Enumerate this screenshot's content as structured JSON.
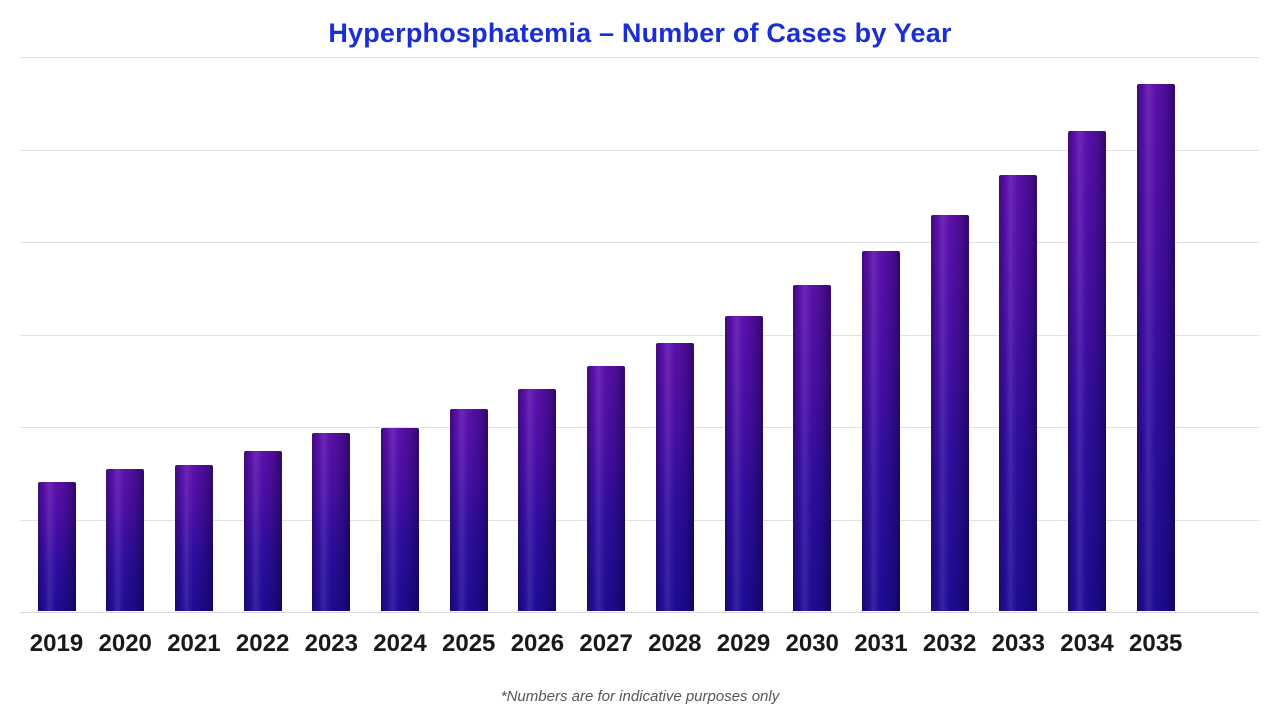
{
  "chart_data": {
    "type": "bar",
    "title": "Hyperphosphatemia – Number of Cases by Year",
    "xlabel": "",
    "ylabel": "",
    "categories": [
      "2019",
      "2020",
      "2021",
      "2022",
      "2023",
      "2024",
      "2025",
      "2026",
      "2027",
      "2028",
      "2029",
      "2030",
      "2031",
      "2032",
      "2033",
      "2034",
      "2035"
    ],
    "values": [
      1.39,
      1.53,
      1.58,
      1.73,
      1.92,
      1.98,
      2.18,
      2.4,
      2.65,
      2.9,
      3.19,
      3.52,
      3.89,
      4.28,
      4.71,
      5.19,
      5.7
    ],
    "value_units": "gridline units (y-axis has no tick labels; values estimated from gridlines)",
    "ylim": [
      0,
      6
    ],
    "gridline_step": 1,
    "grid": "horizontal-only",
    "legend": "none",
    "note": "*Numbers are for indicative purposes only",
    "colors": {
      "title": "#1a2ed6",
      "bar_gradient_top": "#5e10ab",
      "bar_gradient_bottom": "#1e0c94",
      "gridline": "#e1e1e5",
      "x_label": "#191919",
      "note_text": "#565656",
      "background": "#ffffff"
    }
  }
}
